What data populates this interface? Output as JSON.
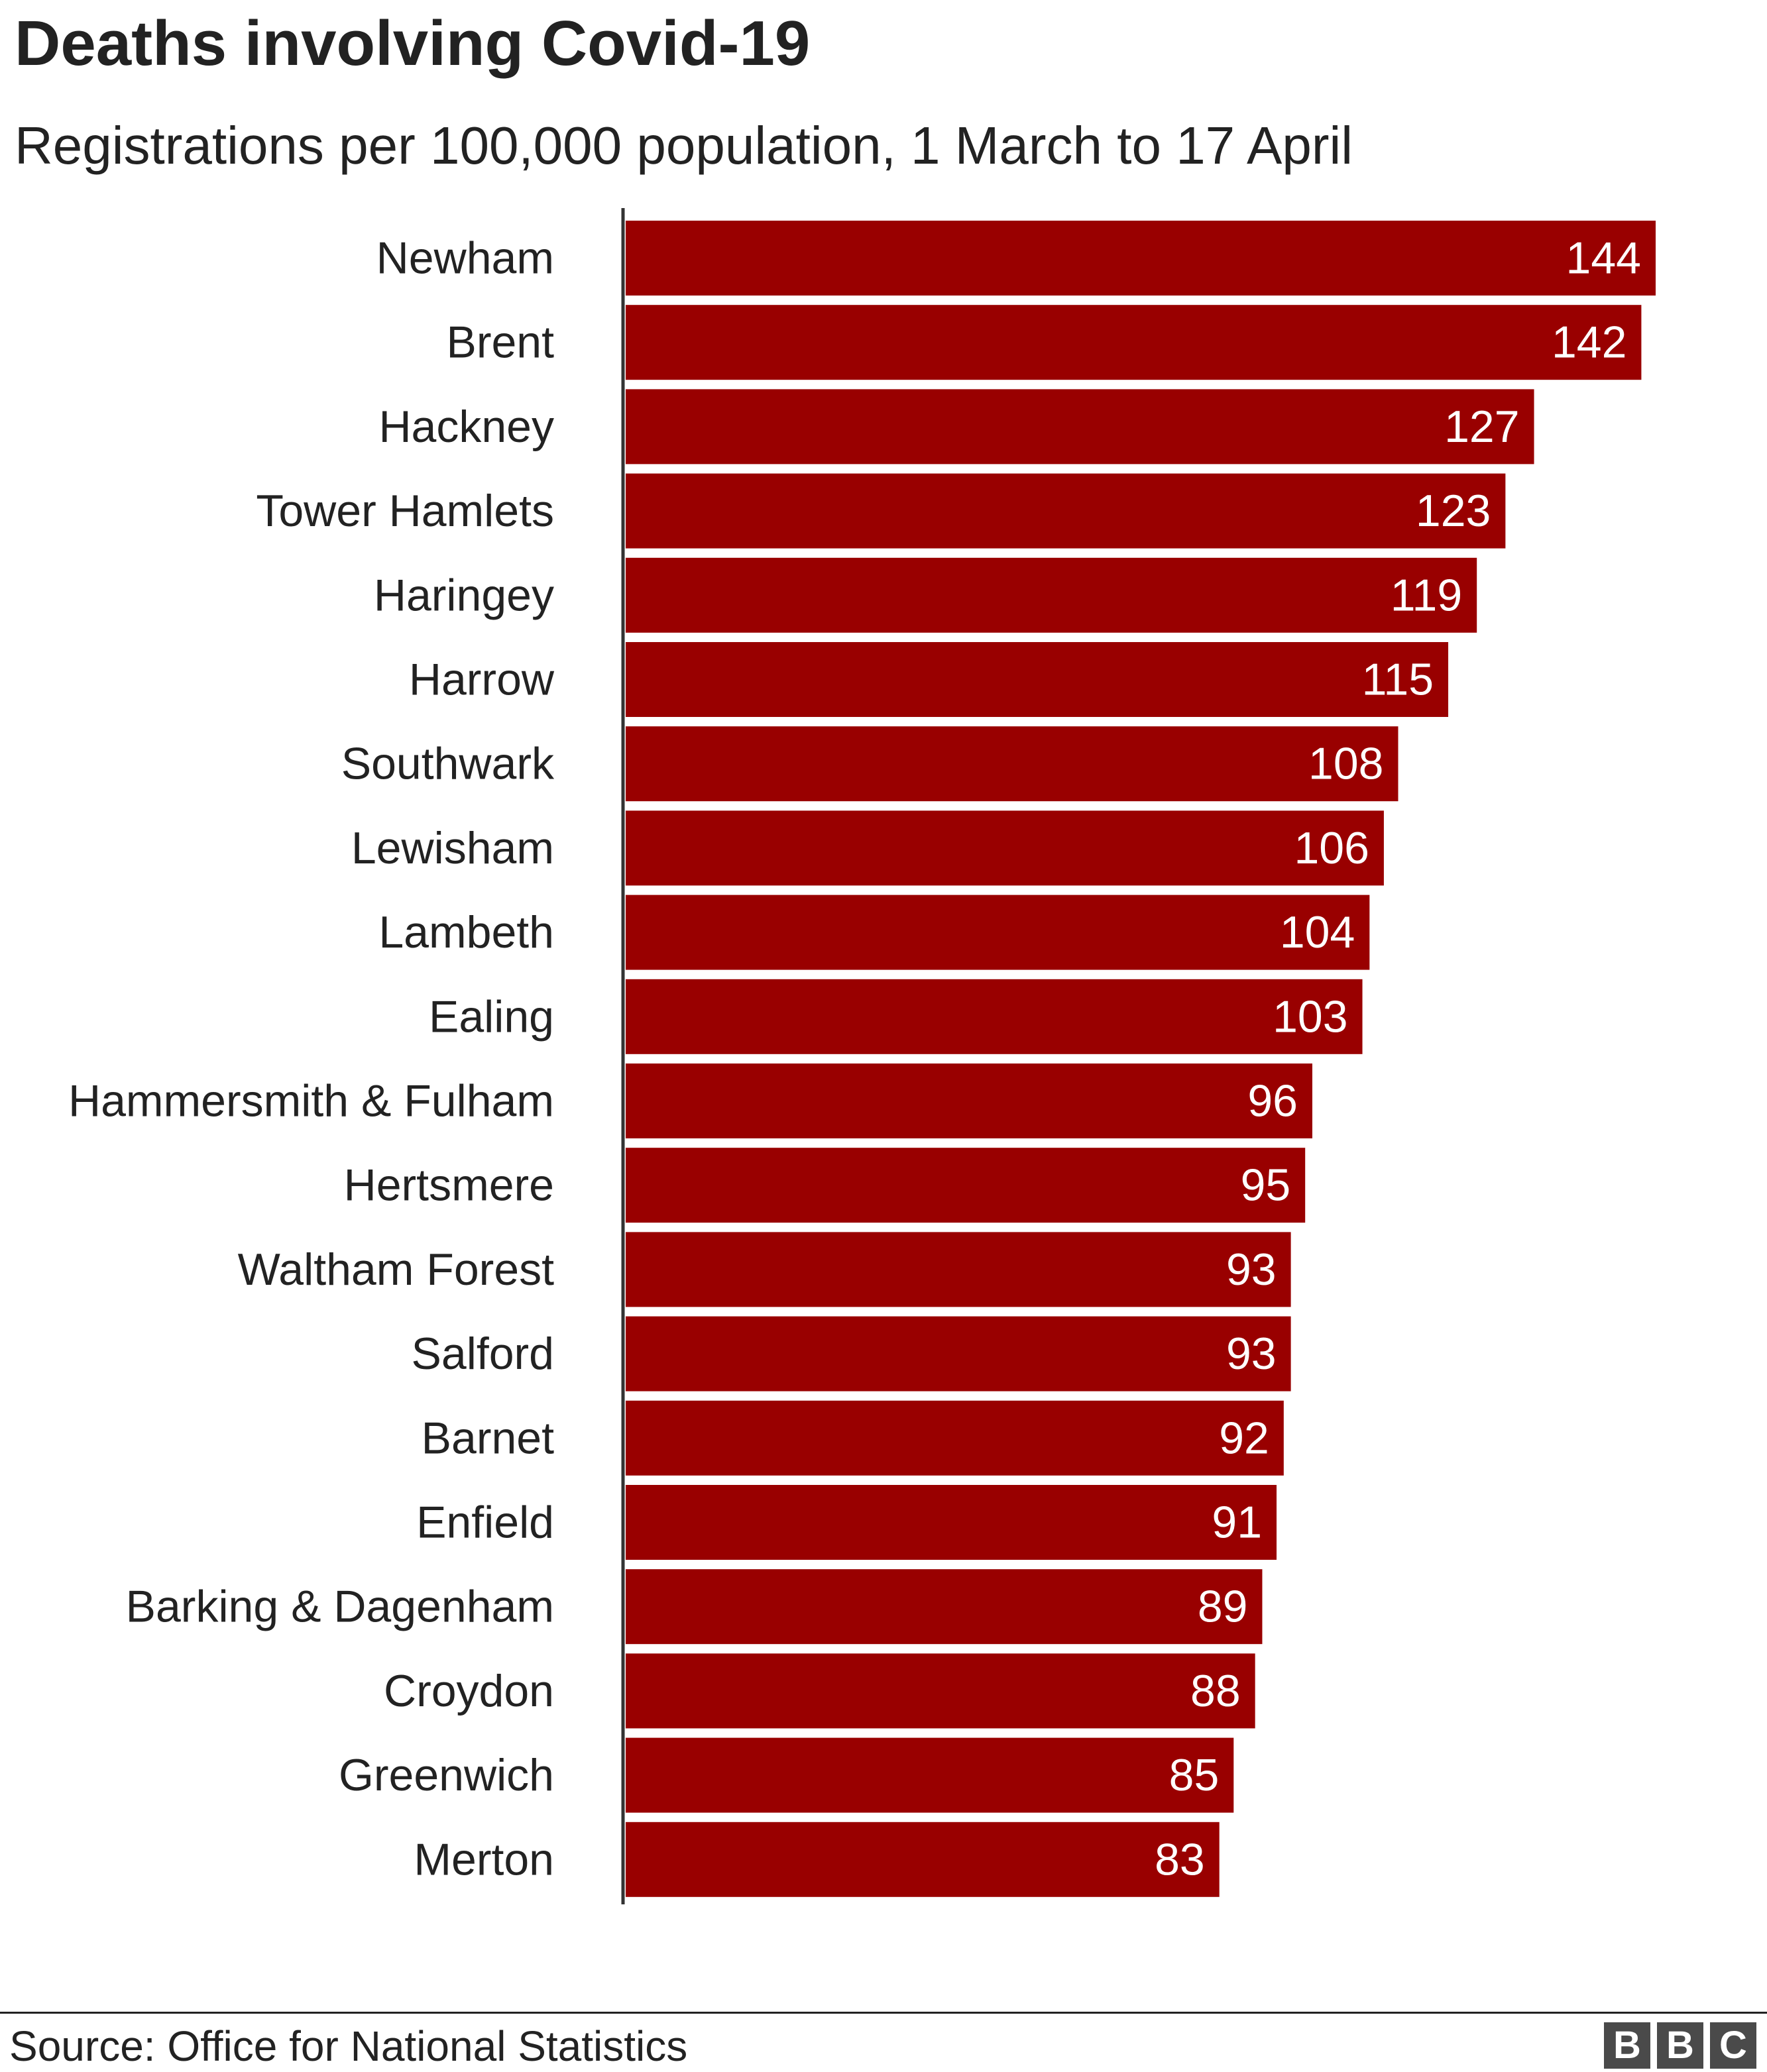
{
  "chart_data": {
    "type": "bar",
    "orientation": "horizontal",
    "title": "Deaths involving Covid-19",
    "subtitle": "Registrations per 100,000 population, 1 March to 17 April",
    "categories": [
      "Newham",
      "Brent",
      "Hackney",
      "Tower Hamlets",
      "Haringey",
      "Harrow",
      "Southwark",
      "Lewisham",
      "Lambeth",
      "Ealing",
      "Hammersmith & Fulham",
      "Hertsmere",
      "Waltham Forest",
      "Salford",
      "Barnet",
      "Enfield",
      "Barking & Dagenham",
      "Croydon",
      "Greenwich",
      "Merton"
    ],
    "values": [
      144,
      142,
      127,
      123,
      119,
      115,
      108,
      106,
      104,
      103,
      96,
      95,
      93,
      93,
      92,
      91,
      89,
      88,
      85,
      83
    ],
    "xlim": [
      0,
      144
    ],
    "grid": false,
    "bar_color": "#990000",
    "value_label_color": "#ffffff",
    "axis_color": "#333333"
  },
  "footer": {
    "source": "Source: Office for National Statistics",
    "logo_letters": [
      "B",
      "B",
      "C"
    ]
  }
}
